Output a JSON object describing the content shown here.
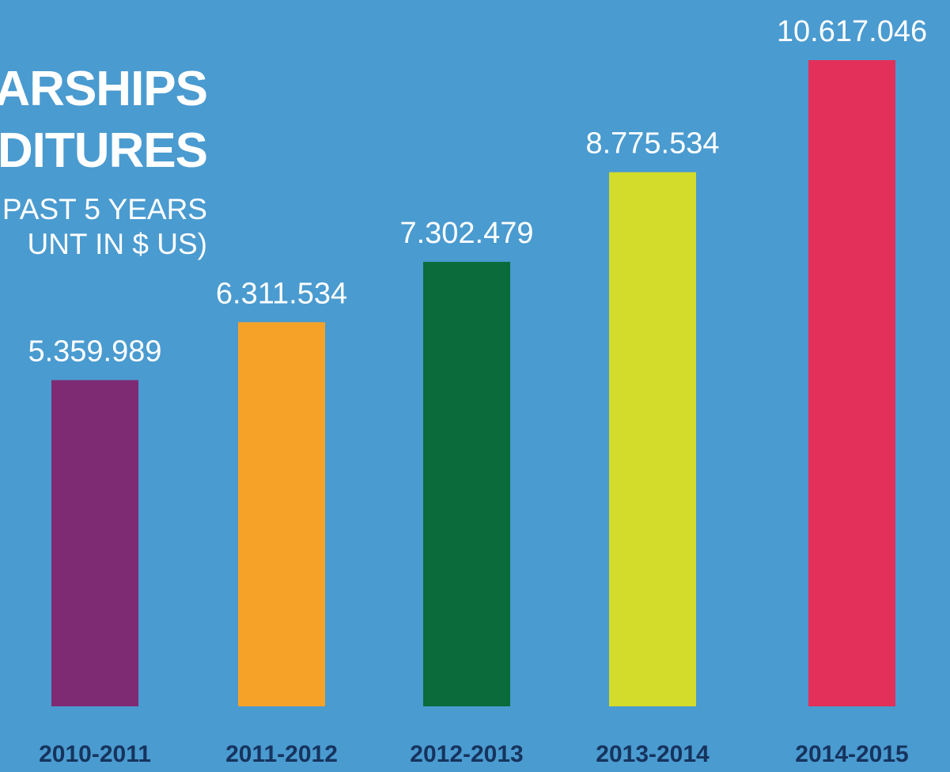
{
  "colors": {
    "background": "#4a9bd0",
    "text": "#ffffff",
    "category_text": "#16345e"
  },
  "title": {
    "line1": "ARSHIPS",
    "line2": "DITURES",
    "line3": "PAST 5 YEARS",
    "line4": "UNT IN $ US)"
  },
  "chart_data": {
    "type": "bar",
    "title": "",
    "xlabel": "",
    "ylabel": "",
    "categories": [
      "2010-2011",
      "2011-2012",
      "2012-2013",
      "2013-2014",
      "2014-2015"
    ],
    "values": [
      5359989,
      6311534,
      7302479,
      8775534,
      10617046
    ],
    "value_labels": [
      "5.359.989",
      "6.311.534",
      "7.302.479",
      "8.775.534",
      "10.617.046"
    ],
    "bar_colors": [
      "#7e2b73",
      "#f6a228",
      "#0b6b3a",
      "#d3dc2a",
      "#e3305a"
    ],
    "ylim": [
      0,
      10617046
    ],
    "grid": false,
    "legend": "none"
  }
}
